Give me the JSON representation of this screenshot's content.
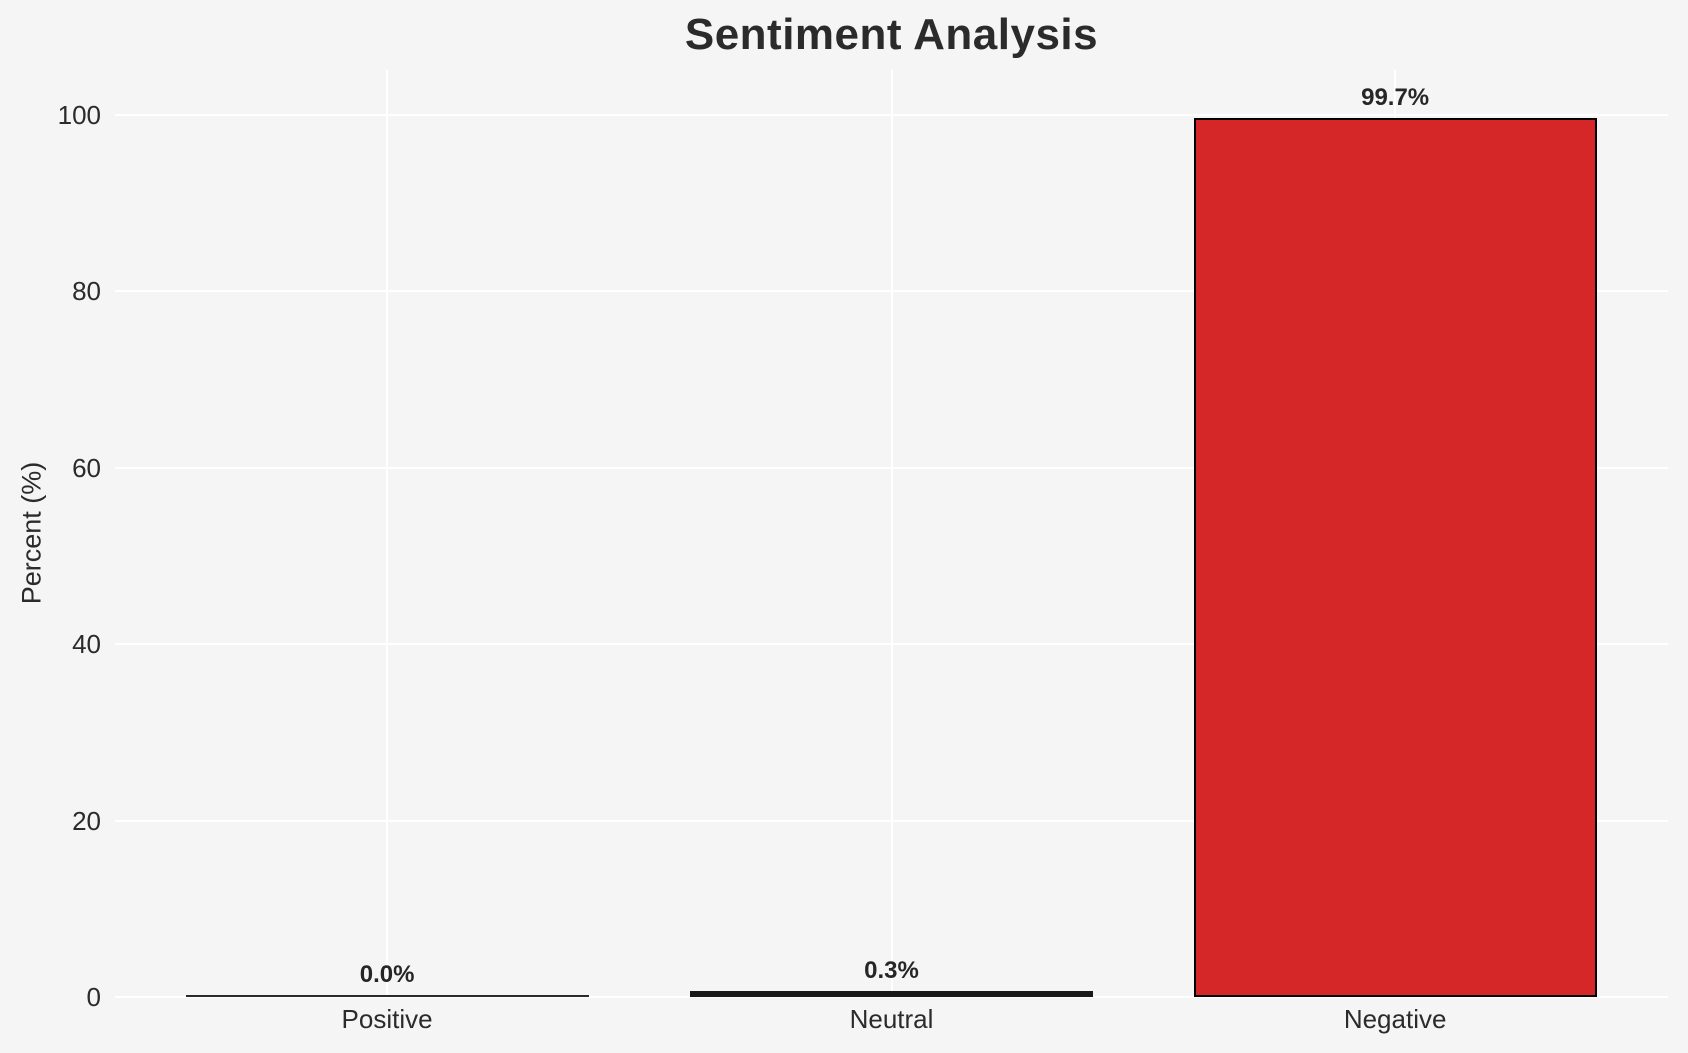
{
  "title": "Sentiment Analysis",
  "chart_data": {
    "type": "bar",
    "title": "Sentiment Analysis",
    "xlabel": "",
    "ylabel": "Percent (%)",
    "categories": [
      "Positive",
      "Neutral",
      "Negative"
    ],
    "values": [
      0.0,
      0.3,
      99.7
    ],
    "value_labels": [
      "0.0%",
      "0.3%",
      "99.7%"
    ],
    "yticks": [
      0,
      20,
      40,
      60,
      80,
      100
    ],
    "ylim": [
      0,
      105
    ],
    "grid": true,
    "legend": false,
    "bar_colors": [
      "#2a2a2a",
      "#1a1a1a",
      "#d62728"
    ],
    "bar_edge_color": "#000000",
    "background_color": "#f5f5f5",
    "grid_color": "#ffffff",
    "text_color": "#2b2b2b"
  }
}
